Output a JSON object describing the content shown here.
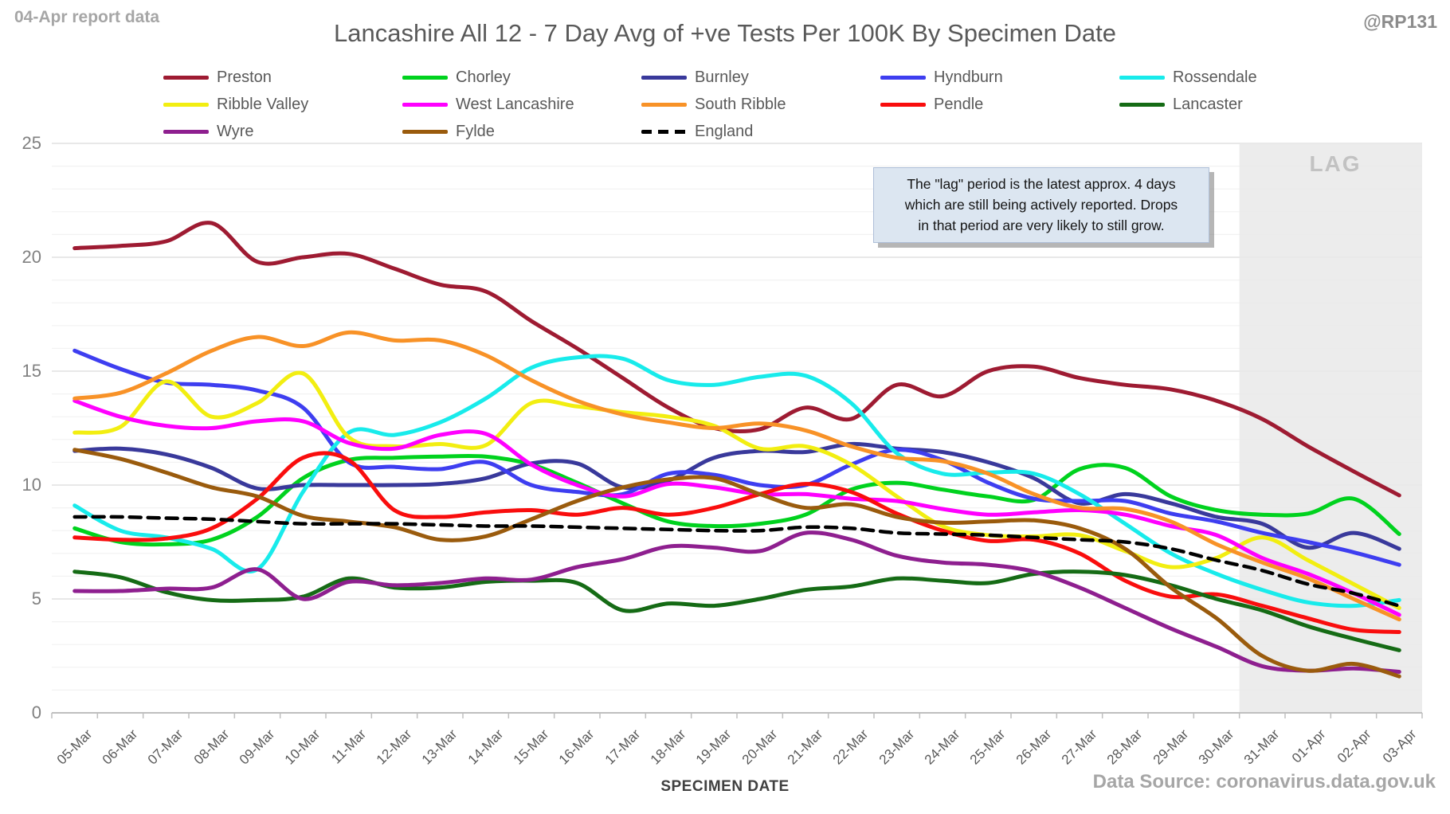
{
  "header": {
    "report_note": "04-Apr report data",
    "title": "Lancashire All 12 - 7 Day Avg of +ve Tests Per 100K By Specimen Date",
    "handle": "@RP131"
  },
  "annotation": {
    "lines": [
      "The \"lag\" period is the latest approx. 4 days",
      "which are still being actively reported.  Drops",
      "in that period are very likely to still grow."
    ]
  },
  "footer": {
    "x_axis_title": "SPECIMEN DATE",
    "data_source": "Data Source: coronavirus.data.gov.uk"
  },
  "chart_data": {
    "type": "line",
    "title": "Lancashire All 12 - 7 Day Avg of +ve Tests Per 100K By Specimen Date",
    "xlabel": "SPECIMEN DATE",
    "ylabel": "",
    "ylim": [
      0,
      25
    ],
    "y_ticks": [
      0,
      5,
      10,
      15,
      20,
      25
    ],
    "grid": {
      "minor_step": 1,
      "major_step": 5,
      "minor_color": "#f2f2f2",
      "major_color": "#d9d9d9"
    },
    "legend_position": "top",
    "lag_region": {
      "label": "LAG",
      "start_category": "31-Mar",
      "end_category": "03-Apr",
      "fill": "#e9e9e9"
    },
    "categories": [
      "05-Mar",
      "06-Mar",
      "07-Mar",
      "08-Mar",
      "09-Mar",
      "10-Mar",
      "11-Mar",
      "12-Mar",
      "13-Mar",
      "14-Mar",
      "15-Mar",
      "16-Mar",
      "17-Mar",
      "18-Mar",
      "19-Mar",
      "20-Mar",
      "21-Mar",
      "22-Mar",
      "23-Mar",
      "24-Mar",
      "25-Mar",
      "26-Mar",
      "27-Mar",
      "28-Mar",
      "29-Mar",
      "30-Mar",
      "31-Mar",
      "01-Apr",
      "02-Apr",
      "03-Apr"
    ],
    "series": [
      {
        "name": "Preston",
        "color": "#9e1b32",
        "dashed": false,
        "values": [
          20.4,
          20.5,
          20.7,
          21.5,
          19.8,
          20.0,
          20.15,
          19.5,
          18.8,
          18.5,
          17.2,
          16.0,
          14.7,
          13.4,
          12.5,
          12.45,
          13.4,
          12.9,
          14.4,
          13.9,
          15.0,
          15.2,
          14.7,
          14.4,
          14.2,
          13.7,
          12.9,
          11.7,
          10.6,
          9.55
        ]
      },
      {
        "name": "Chorley",
        "color": "#00d21e",
        "dashed": false,
        "values": [
          8.1,
          7.5,
          7.4,
          7.6,
          8.6,
          10.3,
          11.1,
          11.2,
          11.25,
          11.25,
          10.9,
          10.1,
          9.2,
          8.4,
          8.2,
          8.3,
          8.7,
          9.8,
          10.1,
          9.8,
          9.5,
          9.35,
          10.7,
          10.75,
          9.5,
          8.9,
          8.7,
          8.75,
          9.4,
          7.85
        ]
      },
      {
        "name": "Burnley",
        "color": "#39399b",
        "dashed": false,
        "values": [
          11.5,
          11.6,
          11.35,
          10.75,
          9.85,
          10.0,
          10.0,
          10.0,
          10.05,
          10.3,
          10.95,
          10.95,
          9.9,
          10.2,
          11.2,
          11.5,
          11.45,
          11.8,
          11.6,
          11.45,
          11.0,
          10.3,
          9.2,
          9.6,
          9.2,
          8.6,
          8.3,
          7.25,
          7.9,
          7.2
        ]
      },
      {
        "name": "Hyndburn",
        "color": "#3e3ef0",
        "dashed": false,
        "values": [
          15.9,
          15.1,
          14.5,
          14.4,
          14.15,
          13.4,
          11.0,
          10.8,
          10.7,
          11.0,
          10.0,
          9.7,
          9.6,
          10.5,
          10.45,
          10.0,
          10.0,
          10.9,
          11.55,
          11.1,
          10.1,
          9.4,
          9.3,
          9.3,
          8.75,
          8.4,
          7.9,
          7.5,
          7.05,
          6.5
        ]
      },
      {
        "name": "Rossendale",
        "color": "#18ebeb",
        "dashed": false,
        "values": [
          9.1,
          8.0,
          7.7,
          7.2,
          6.3,
          9.7,
          12.3,
          12.2,
          12.75,
          13.8,
          15.15,
          15.6,
          15.55,
          14.6,
          14.4,
          14.75,
          14.8,
          13.6,
          11.4,
          10.5,
          10.55,
          10.5,
          9.6,
          8.3,
          7.0,
          6.1,
          5.4,
          4.85,
          4.7,
          4.95
        ]
      },
      {
        "name": "Ribble Valley",
        "color": "#f2ee11",
        "dashed": false,
        "values": [
          12.3,
          12.55,
          14.55,
          13.0,
          13.6,
          14.9,
          12.1,
          11.7,
          11.8,
          11.75,
          13.6,
          13.45,
          13.2,
          13.0,
          12.6,
          11.6,
          11.7,
          10.9,
          9.5,
          8.2,
          7.8,
          7.75,
          7.8,
          7.1,
          6.4,
          6.8,
          7.7,
          6.7,
          5.65,
          4.6
        ]
      },
      {
        "name": "West Lancashire",
        "color": "#ff00ff",
        "dashed": false,
        "values": [
          13.7,
          13.0,
          12.6,
          12.5,
          12.8,
          12.8,
          11.85,
          11.6,
          12.2,
          12.25,
          10.9,
          10.0,
          9.5,
          10.05,
          9.9,
          9.6,
          9.6,
          9.4,
          9.3,
          8.95,
          8.7,
          8.8,
          8.9,
          8.7,
          8.2,
          7.8,
          6.8,
          6.1,
          5.25,
          4.3
        ]
      },
      {
        "name": "South Ribble",
        "color": "#f89227",
        "dashed": false,
        "values": [
          13.8,
          14.05,
          14.9,
          15.9,
          16.5,
          16.1,
          16.7,
          16.35,
          16.35,
          15.7,
          14.6,
          13.7,
          13.1,
          12.75,
          12.5,
          12.7,
          12.4,
          11.7,
          11.2,
          11.05,
          10.5,
          9.6,
          9.0,
          8.95,
          8.4,
          7.4,
          6.6,
          5.9,
          5.0,
          4.1
        ]
      },
      {
        "name": "Pendle",
        "color": "#f90d0d",
        "dashed": false,
        "values": [
          7.7,
          7.6,
          7.65,
          8.1,
          9.4,
          11.2,
          11.1,
          8.9,
          8.6,
          8.8,
          8.9,
          8.7,
          9.0,
          8.7,
          9.0,
          9.6,
          10.05,
          9.7,
          8.75,
          8.0,
          7.55,
          7.6,
          7.0,
          5.8,
          5.1,
          5.2,
          4.7,
          4.15,
          3.65,
          3.55
        ]
      },
      {
        "name": "Lancaster",
        "color": "#156b15",
        "dashed": false,
        "values": [
          6.2,
          5.95,
          5.3,
          4.95,
          4.95,
          5.1,
          5.9,
          5.5,
          5.5,
          5.75,
          5.8,
          5.7,
          4.5,
          4.8,
          4.7,
          5.0,
          5.4,
          5.55,
          5.9,
          5.8,
          5.7,
          6.1,
          6.2,
          6.05,
          5.6,
          5.0,
          4.5,
          3.8,
          3.25,
          2.75
        ]
      },
      {
        "name": "Wyre",
        "color": "#8e1f8f",
        "dashed": false,
        "values": [
          5.35,
          5.35,
          5.45,
          5.5,
          6.3,
          5.0,
          5.75,
          5.6,
          5.7,
          5.9,
          5.85,
          6.4,
          6.75,
          7.3,
          7.25,
          7.1,
          7.9,
          7.6,
          6.9,
          6.6,
          6.5,
          6.2,
          5.5,
          4.6,
          3.7,
          2.9,
          2.05,
          1.85,
          1.95,
          1.8
        ]
      },
      {
        "name": "Fylde",
        "color": "#9a5b0d",
        "dashed": false,
        "values": [
          11.55,
          11.15,
          10.55,
          9.9,
          9.5,
          8.65,
          8.4,
          8.15,
          7.6,
          7.75,
          8.5,
          9.3,
          9.9,
          10.25,
          10.3,
          9.6,
          9.0,
          9.15,
          8.6,
          8.35,
          8.4,
          8.45,
          8.1,
          7.2,
          5.5,
          4.15,
          2.5,
          1.85,
          2.15,
          1.6
        ]
      },
      {
        "name": "England",
        "color": "#000000",
        "dashed": true,
        "values": [
          8.6,
          8.6,
          8.55,
          8.5,
          8.4,
          8.3,
          8.3,
          8.3,
          8.25,
          8.2,
          8.2,
          8.15,
          8.1,
          8.05,
          8.0,
          8.0,
          8.15,
          8.1,
          7.9,
          7.85,
          7.8,
          7.7,
          7.6,
          7.5,
          7.2,
          6.7,
          6.25,
          5.65,
          5.25,
          4.7
        ]
      }
    ]
  }
}
